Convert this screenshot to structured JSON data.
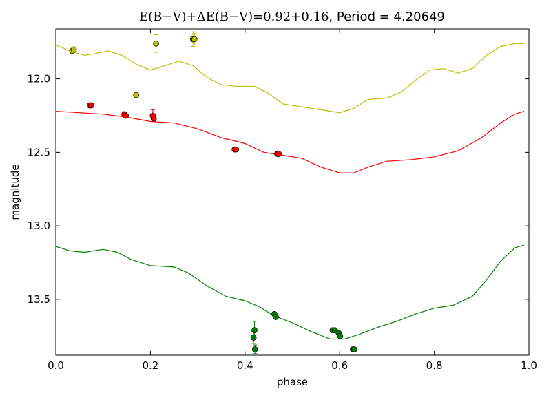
{
  "chart_data": {
    "type": "scatter",
    "title_math": "E(B−V)+ΔE(B−V)=0.92+0.16",
    "title_rest": ", Period = 4.20649",
    "xlabel": "phase",
    "ylabel": "magnitude",
    "xlim": [
      0.0,
      1.0
    ],
    "ylim": [
      13.88,
      11.66
    ],
    "y_inverted": true,
    "x_ticks": [
      "0.0",
      "0.2",
      "0.4",
      "0.6",
      "0.8",
      "1.0"
    ],
    "x_tick_values": [
      0.0,
      0.2,
      0.4,
      0.6,
      0.8,
      1.0
    ],
    "y_ticks": [
      "12.0",
      "12.5",
      "13.0",
      "13.5"
    ],
    "y_tick_values": [
      12.0,
      12.5,
      13.0,
      13.5
    ],
    "grid": false,
    "series": [
      {
        "color": "#bfbf00",
        "points": [
          {
            "x": 0.035,
            "y": 11.81,
            "err": 0.0
          },
          {
            "x": 0.038,
            "y": 11.8,
            "err": 0.0
          },
          {
            "x": 0.17,
            "y": 12.11,
            "err": 0.02
          },
          {
            "x": 0.212,
            "y": 11.76,
            "err": 0.06
          },
          {
            "x": 0.29,
            "y": 11.73,
            "err": 0.05
          },
          {
            "x": 0.293,
            "y": 11.73,
            "err": 0.04
          }
        ],
        "curve": [
          [
            0.0,
            11.77
          ],
          [
            0.03,
            11.81
          ],
          [
            0.06,
            11.84
          ],
          [
            0.08,
            11.83
          ],
          [
            0.11,
            11.81
          ],
          [
            0.14,
            11.84
          ],
          [
            0.17,
            11.9
          ],
          [
            0.2,
            11.94
          ],
          [
            0.23,
            11.91
          ],
          [
            0.26,
            11.88
          ],
          [
            0.29,
            11.91
          ],
          [
            0.32,
            11.99
          ],
          [
            0.35,
            12.04
          ],
          [
            0.38,
            12.05
          ],
          [
            0.42,
            12.05
          ],
          [
            0.45,
            12.1
          ],
          [
            0.48,
            12.17
          ],
          [
            0.52,
            12.19
          ],
          [
            0.56,
            12.21
          ],
          [
            0.6,
            12.23
          ],
          [
            0.63,
            12.2
          ],
          [
            0.66,
            12.14
          ],
          [
            0.7,
            12.13
          ],
          [
            0.73,
            12.09
          ],
          [
            0.76,
            12.01
          ],
          [
            0.79,
            11.94
          ],
          [
            0.82,
            11.93
          ],
          [
            0.85,
            11.96
          ],
          [
            0.88,
            11.93
          ],
          [
            0.91,
            11.84
          ],
          [
            0.94,
            11.78
          ],
          [
            0.97,
            11.76
          ],
          [
            0.99,
            11.76
          ]
        ]
      },
      {
        "color": "#ff0000",
        "points": [
          {
            "x": 0.072,
            "y": 12.18,
            "err": 0.0
          },
          {
            "x": 0.075,
            "y": 12.18,
            "err": 0.0
          },
          {
            "x": 0.145,
            "y": 12.24,
            "err": 0.0
          },
          {
            "x": 0.148,
            "y": 12.25,
            "err": 0.0
          },
          {
            "x": 0.205,
            "y": 12.25,
            "err": 0.04
          },
          {
            "x": 0.207,
            "y": 12.27,
            "err": 0.0
          },
          {
            "x": 0.378,
            "y": 12.48,
            "err": 0.0
          },
          {
            "x": 0.381,
            "y": 12.48,
            "err": 0.0
          },
          {
            "x": 0.468,
            "y": 12.51,
            "err": 0.0
          },
          {
            "x": 0.471,
            "y": 12.51,
            "err": 0.0
          }
        ],
        "curve": [
          [
            0.0,
            12.22
          ],
          [
            0.05,
            12.23
          ],
          [
            0.1,
            12.24
          ],
          [
            0.15,
            12.26
          ],
          [
            0.2,
            12.29
          ],
          [
            0.25,
            12.3
          ],
          [
            0.3,
            12.34
          ],
          [
            0.35,
            12.4
          ],
          [
            0.4,
            12.44
          ],
          [
            0.44,
            12.5
          ],
          [
            0.48,
            12.52
          ],
          [
            0.52,
            12.54
          ],
          [
            0.56,
            12.6
          ],
          [
            0.6,
            12.64
          ],
          [
            0.63,
            12.64
          ],
          [
            0.66,
            12.6
          ],
          [
            0.7,
            12.56
          ],
          [
            0.75,
            12.55
          ],
          [
            0.8,
            12.53
          ],
          [
            0.85,
            12.49
          ],
          [
            0.9,
            12.4
          ],
          [
            0.94,
            12.3
          ],
          [
            0.97,
            12.24
          ],
          [
            0.99,
            12.22
          ]
        ]
      },
      {
        "color": "#008000",
        "points": [
          {
            "x": 0.418,
            "y": 13.76,
            "err": 0.04
          },
          {
            "x": 0.42,
            "y": 13.71,
            "err": 0.06
          },
          {
            "x": 0.421,
            "y": 13.84,
            "err": 0.03
          },
          {
            "x": 0.462,
            "y": 13.6,
            "err": 0.0
          },
          {
            "x": 0.465,
            "y": 13.62,
            "err": 0.0
          },
          {
            "x": 0.585,
            "y": 13.71,
            "err": 0.0
          },
          {
            "x": 0.59,
            "y": 13.71,
            "err": 0.0
          },
          {
            "x": 0.598,
            "y": 13.73,
            "err": 0.0
          },
          {
            "x": 0.601,
            "y": 13.75,
            "err": 0.0
          },
          {
            "x": 0.628,
            "y": 13.84,
            "err": 0.0
          },
          {
            "x": 0.631,
            "y": 13.84,
            "err": 0.0
          }
        ],
        "curve": [
          [
            0.0,
            13.14
          ],
          [
            0.03,
            13.17
          ],
          [
            0.06,
            13.18
          ],
          [
            0.1,
            13.16
          ],
          [
            0.13,
            13.18
          ],
          [
            0.16,
            13.23
          ],
          [
            0.2,
            13.27
          ],
          [
            0.25,
            13.28
          ],
          [
            0.28,
            13.32
          ],
          [
            0.32,
            13.41
          ],
          [
            0.36,
            13.48
          ],
          [
            0.4,
            13.51
          ],
          [
            0.43,
            13.55
          ],
          [
            0.46,
            13.61
          ],
          [
            0.5,
            13.66
          ],
          [
            0.54,
            13.72
          ],
          [
            0.58,
            13.77
          ],
          [
            0.61,
            13.77
          ],
          [
            0.64,
            13.74
          ],
          [
            0.68,
            13.69
          ],
          [
            0.72,
            13.65
          ],
          [
            0.76,
            13.6
          ],
          [
            0.8,
            13.56
          ],
          [
            0.84,
            13.54
          ],
          [
            0.88,
            13.48
          ],
          [
            0.91,
            13.37
          ],
          [
            0.94,
            13.24
          ],
          [
            0.97,
            13.15
          ],
          [
            0.99,
            13.13
          ]
        ]
      }
    ]
  }
}
